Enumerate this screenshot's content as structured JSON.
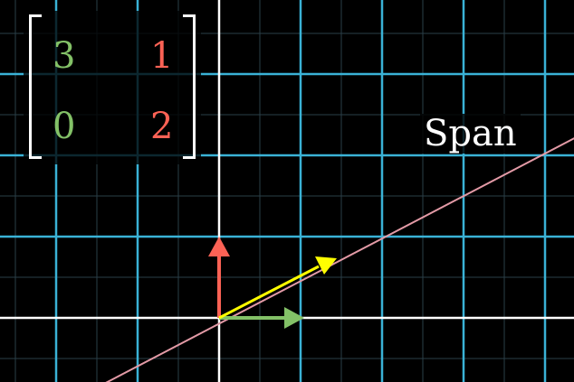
{
  "colors": {
    "background": "#000000",
    "grid_major": "#3ab2d6",
    "grid_minor": "#2a3f48",
    "axis": "#ffffff",
    "span_line": "#e39aa6",
    "i_hat": "#83c167",
    "j_hat": "#fc6255",
    "vector": "#ffff00"
  },
  "matrix": {
    "row1": [
      "3",
      "1"
    ],
    "row2": [
      "0",
      "2"
    ],
    "col1_color": "#83c167",
    "col2_color": "#fc6255"
  },
  "span_label": "Span"
}
